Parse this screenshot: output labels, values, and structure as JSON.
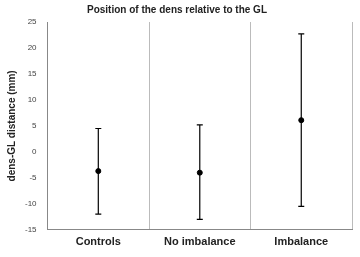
{
  "chart_data": {
    "type": "scatter",
    "title": "Position of the dens relative to the GL",
    "y_label": "dens-GL distance (mm)",
    "categories": [
      "Controls",
      "No imbalance",
      "Imbalance"
    ],
    "values": [
      -3.7,
      -4.0,
      6.1
    ],
    "error_low": [
      -12.0,
      -13.0,
      -10.5
    ],
    "error_high": [
      4.5,
      5.2,
      22.7
    ],
    "color": "#000000",
    "marker": "circle",
    "ylim": [
      -15,
      25
    ],
    "yticks": [
      -15,
      -10,
      -5,
      0,
      5,
      10,
      15,
      20,
      25
    ],
    "grid": true
  }
}
